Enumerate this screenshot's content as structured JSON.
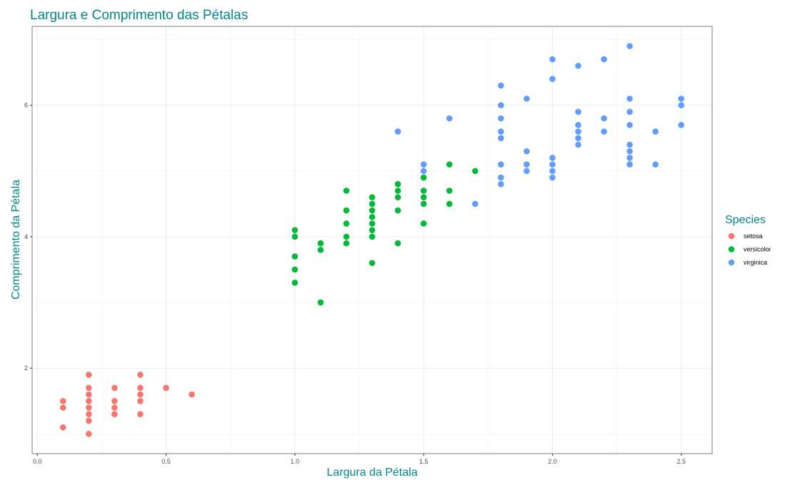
{
  "chart_data": {
    "type": "scatter",
    "title": "Largura e Comprimento das Pétalas",
    "xlabel": "Largura da Pétala",
    "ylabel": "Comprimento da Pétala",
    "xlim": [
      -0.02,
      2.62
    ],
    "ylim": [
      0.7,
      7.2
    ],
    "x_ticks": [
      0.0,
      0.5,
      1.0,
      1.5,
      2.0,
      2.5
    ],
    "x_tick_labels": [
      "0.0",
      "0.5",
      "1.0",
      "1.5",
      "2.0",
      "2.5"
    ],
    "y_ticks": [
      2,
      4,
      6
    ],
    "y_tick_labels": [
      "2",
      "4",
      "6"
    ],
    "grid": true,
    "legend": {
      "title": "Species",
      "position": "right"
    },
    "title_color": "#00868B",
    "series": [
      {
        "name": "setosa",
        "color": "#F8766D",
        "points": [
          [
            0.1,
            1.5
          ],
          [
            0.1,
            1.4
          ],
          [
            0.1,
            1.1
          ],
          [
            0.2,
            1.9
          ],
          [
            0.2,
            1.7
          ],
          [
            0.2,
            1.6
          ],
          [
            0.2,
            1.5
          ],
          [
            0.2,
            1.4
          ],
          [
            0.2,
            1.3
          ],
          [
            0.2,
            1.2
          ],
          [
            0.2,
            1.0
          ],
          [
            0.3,
            1.7
          ],
          [
            0.3,
            1.5
          ],
          [
            0.3,
            1.4
          ],
          [
            0.3,
            1.3
          ],
          [
            0.4,
            1.9
          ],
          [
            0.4,
            1.7
          ],
          [
            0.4,
            1.6
          ],
          [
            0.4,
            1.5
          ],
          [
            0.4,
            1.3
          ],
          [
            0.5,
            1.7
          ],
          [
            0.6,
            1.6
          ]
        ]
      },
      {
        "name": "versicolor",
        "color": "#00BA38",
        "points": [
          [
            1.0,
            4.1
          ],
          [
            1.0,
            4.0
          ],
          [
            1.0,
            3.7
          ],
          [
            1.0,
            3.5
          ],
          [
            1.0,
            3.3
          ],
          [
            1.1,
            3.9
          ],
          [
            1.1,
            3.8
          ],
          [
            1.1,
            3.0
          ],
          [
            1.2,
            4.7
          ],
          [
            1.2,
            4.4
          ],
          [
            1.2,
            4.2
          ],
          [
            1.2,
            4.0
          ],
          [
            1.2,
            3.9
          ],
          [
            1.3,
            4.6
          ],
          [
            1.3,
            4.5
          ],
          [
            1.3,
            4.4
          ],
          [
            1.3,
            4.3
          ],
          [
            1.3,
            4.2
          ],
          [
            1.3,
            4.1
          ],
          [
            1.3,
            4.0
          ],
          [
            1.3,
            3.6
          ],
          [
            1.4,
            4.8
          ],
          [
            1.4,
            4.7
          ],
          [
            1.4,
            4.6
          ],
          [
            1.4,
            4.4
          ],
          [
            1.4,
            3.9
          ],
          [
            1.5,
            4.9
          ],
          [
            1.5,
            4.7
          ],
          [
            1.5,
            4.6
          ],
          [
            1.5,
            4.5
          ],
          [
            1.5,
            4.2
          ],
          [
            1.6,
            5.1
          ],
          [
            1.6,
            4.7
          ],
          [
            1.6,
            4.5
          ],
          [
            1.7,
            5.0
          ]
        ]
      },
      {
        "name": "virginica",
        "color": "#619CFF",
        "points": [
          [
            1.4,
            5.6
          ],
          [
            1.5,
            5.1
          ],
          [
            1.5,
            5.0
          ],
          [
            1.6,
            5.8
          ],
          [
            1.7,
            4.5
          ],
          [
            1.8,
            6.3
          ],
          [
            1.8,
            6.0
          ],
          [
            1.8,
            5.8
          ],
          [
            1.8,
            5.6
          ],
          [
            1.8,
            5.5
          ],
          [
            1.8,
            5.1
          ],
          [
            1.8,
            4.9
          ],
          [
            1.8,
            4.8
          ],
          [
            1.9,
            6.1
          ],
          [
            1.9,
            5.3
          ],
          [
            1.9,
            5.1
          ],
          [
            1.9,
            5.0
          ],
          [
            2.0,
            6.7
          ],
          [
            2.0,
            6.4
          ],
          [
            2.0,
            5.2
          ],
          [
            2.0,
            5.1
          ],
          [
            2.0,
            5.0
          ],
          [
            2.0,
            4.9
          ],
          [
            2.1,
            6.6
          ],
          [
            2.1,
            5.9
          ],
          [
            2.1,
            5.7
          ],
          [
            2.1,
            5.6
          ],
          [
            2.1,
            5.5
          ],
          [
            2.1,
            5.4
          ],
          [
            2.2,
            6.7
          ],
          [
            2.2,
            5.8
          ],
          [
            2.2,
            5.6
          ],
          [
            2.3,
            6.9
          ],
          [
            2.3,
            6.1
          ],
          [
            2.3,
            5.9
          ],
          [
            2.3,
            5.7
          ],
          [
            2.3,
            5.4
          ],
          [
            2.3,
            5.3
          ],
          [
            2.3,
            5.2
          ],
          [
            2.3,
            5.1
          ],
          [
            2.4,
            5.6
          ],
          [
            2.4,
            5.1
          ],
          [
            2.5,
            6.1
          ],
          [
            2.5,
            6.0
          ],
          [
            2.5,
            5.7
          ]
        ]
      }
    ]
  }
}
